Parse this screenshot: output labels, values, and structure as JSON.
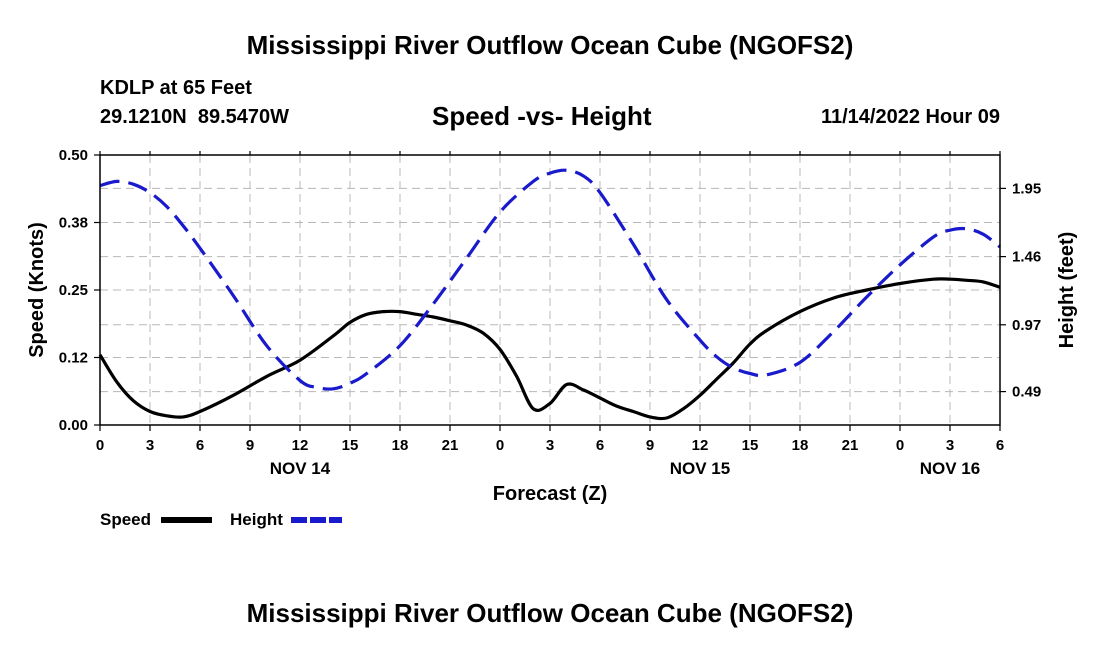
{
  "header": {
    "title": "Mississippi River Outflow Ocean Cube (NGOFS2)",
    "station": "KDLP at 65 Feet",
    "coords": "29.1210N  89.5470W",
    "subtitle": "Speed -vs- Height",
    "datetime": "11/14/2022 Hour 09"
  },
  "footer": {
    "title": "Mississippi River Outflow Ocean Cube (NGOFS2)"
  },
  "chart_data": {
    "type": "line",
    "title": "Speed -vs- Height",
    "xlabel": "Forecast (Z)",
    "ylabel": "Speed (Knots)",
    "y2label": "Height (feet)",
    "x_range": [
      0,
      54
    ],
    "x_ticks": [
      0,
      3,
      6,
      9,
      12,
      15,
      18,
      21,
      24,
      27,
      30,
      33,
      36,
      39,
      42,
      45,
      48,
      51,
      54
    ],
    "x_tick_labels": [
      "0",
      "3",
      "6",
      "9",
      "12",
      "15",
      "18",
      "21",
      "0",
      "3",
      "6",
      "9",
      "12",
      "15",
      "18",
      "21",
      "0",
      "3",
      "6"
    ],
    "day_labels": [
      {
        "x": 12,
        "label": "NOV 14"
      },
      {
        "x": 36,
        "label": "NOV 15"
      },
      {
        "x": 51,
        "label": "NOV 16"
      }
    ],
    "ylim": [
      0,
      0.5
    ],
    "y_ticks": [
      0,
      0.125,
      0.25,
      0.375,
      0.5
    ],
    "y_tick_labels": [
      "0.00",
      "0.12",
      "0.25",
      "0.38",
      "0.50"
    ],
    "y2lim": [
      0.25,
      2.19
    ],
    "y2_ticks": [
      0.49,
      0.97,
      1.46,
      1.95
    ],
    "y2_tick_labels": [
      "0.49",
      "0.97",
      "1.46",
      "1.95"
    ],
    "grid": true,
    "series": [
      {
        "name": "Speed",
        "axis": "left",
        "color": "#000000",
        "dash": "solid",
        "x": [
          0,
          1,
          2,
          3,
          4,
          5,
          6,
          8,
          10,
          12,
          14,
          15,
          16,
          17,
          18,
          19,
          20,
          21,
          22,
          23,
          24,
          25,
          26,
          27,
          28,
          29,
          30,
          31,
          32,
          33,
          34,
          35,
          36,
          37,
          38,
          39,
          40,
          42,
          44,
          46,
          48,
          50,
          51,
          52,
          53,
          54
        ],
        "values": [
          0.13,
          0.08,
          0.045,
          0.025,
          0.017,
          0.015,
          0.025,
          0.055,
          0.09,
          0.12,
          0.165,
          0.19,
          0.205,
          0.21,
          0.21,
          0.205,
          0.2,
          0.193,
          0.185,
          0.17,
          0.14,
          0.09,
          0.03,
          0.04,
          0.075,
          0.065,
          0.05,
          0.035,
          0.025,
          0.015,
          0.013,
          0.03,
          0.055,
          0.085,
          0.115,
          0.15,
          0.175,
          0.21,
          0.235,
          0.25,
          0.262,
          0.27,
          0.27,
          0.268,
          0.265,
          0.255
        ]
      },
      {
        "name": "Height",
        "axis": "right",
        "color": "#1a1acd",
        "dash": "dashed",
        "x": [
          0,
          1,
          2,
          3,
          4,
          5,
          6,
          8,
          10,
          12,
          13,
          14,
          15,
          16,
          18,
          20,
          22,
          24,
          26,
          27,
          28,
          29,
          30,
          32,
          34,
          36,
          37,
          38,
          39,
          40,
          42,
          44,
          46,
          48,
          50,
          51,
          52,
          53,
          54
        ],
        "values": [
          1.97,
          2.0,
          1.98,
          1.92,
          1.82,
          1.68,
          1.52,
          1.18,
          0.82,
          0.57,
          0.52,
          0.51,
          0.55,
          0.62,
          0.82,
          1.12,
          1.45,
          1.78,
          2.0,
          2.06,
          2.08,
          2.04,
          1.92,
          1.55,
          1.15,
          0.86,
          0.74,
          0.66,
          0.62,
          0.61,
          0.7,
          0.92,
          1.17,
          1.4,
          1.6,
          1.65,
          1.66,
          1.62,
          1.53
        ]
      }
    ],
    "legend": [
      {
        "label": "Speed",
        "color": "#000000",
        "dash": "solid"
      },
      {
        "label": "Height",
        "color": "#1a1acd",
        "dash": "dashed"
      }
    ],
    "legend_position": "bottom-left"
  }
}
